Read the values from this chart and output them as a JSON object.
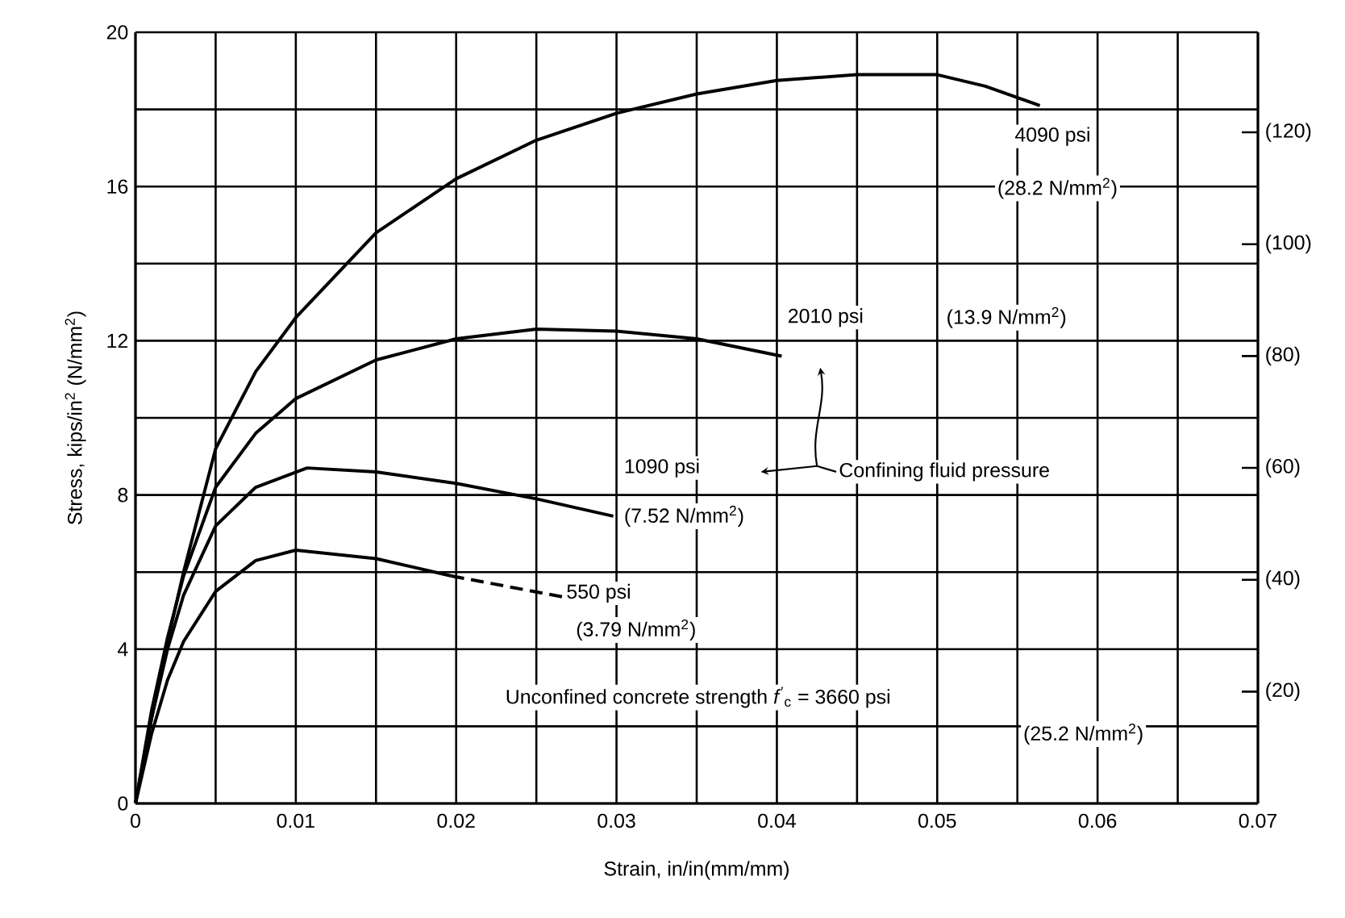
{
  "chart_data": {
    "type": "line",
    "xlabel": "Strain, in/in(mm/mm)",
    "ylabel": "Stress, kips/in$^{2}$ (N/mm$^{2}$)",
    "xlim": [
      0,
      0.07
    ],
    "xticks": [
      0,
      {
        "value": 0.005,
        "label": null
      },
      0.01,
      {
        "value": 0.015,
        "label": null
      },
      0.02,
      {
        "value": 0.025,
        "label": null
      },
      0.03,
      {
        "value": 0.035,
        "label": null
      },
      0.04,
      {
        "value": 0.045,
        "label": null
      },
      0.05,
      {
        "value": 0.055,
        "label": null
      },
      0.06,
      {
        "value": 0.065,
        "label": null
      },
      0.07
    ],
    "ylim": [
      0,
      20
    ],
    "yticks": [
      0,
      {
        "value": 2,
        "label": null
      },
      4,
      {
        "value": 6,
        "label": null
      },
      8,
      {
        "value": 10,
        "label": null
      },
      12,
      {
        "value": 14,
        "label": null
      },
      16,
      {
        "value": 18,
        "label": null
      },
      20
    ],
    "y2lim": [
      0,
      137.9
    ],
    "y2ticks": [
      {
        "value": 20,
        "label": "(20)"
      },
      {
        "value": 40,
        "label": "(40)"
      },
      {
        "value": 60,
        "label": "(60)"
      },
      {
        "value": 80,
        "label": "(80)"
      },
      {
        "value": 100,
        "label": "(100)"
      },
      {
        "value": 120,
        "label": "(120)"
      }
    ],
    "grid": true,
    "series": [
      {
        "name": "4090 psi",
        "color": "#000000",
        "line_style": "solid",
        "x": [
          0,
          0.001,
          0.002,
          0.003,
          0.005,
          0.0075,
          0.01,
          0.015,
          0.02,
          0.025,
          0.03,
          0.035,
          0.04,
          0.045,
          0.05,
          0.053,
          0.0564
        ],
        "values": [
          0,
          2.2,
          4.2,
          6,
          9.2,
          11.2,
          12.6,
          14.8,
          16.2,
          17.2,
          17.9,
          18.4,
          18.75,
          18.9,
          18.9,
          18.6,
          18.1
        ]
      },
      {
        "name": "2010 psi",
        "color": "#000000",
        "line_style": "solid",
        "x": [
          0,
          0.001,
          0.002,
          0.003,
          0.005,
          0.0075,
          0.01,
          0.015,
          0.02,
          0.025,
          0.03,
          0.035,
          0.0403
        ],
        "values": [
          0,
          2.4,
          4.3,
          5.9,
          8.2,
          9.6,
          10.5,
          11.5,
          12.05,
          12.3,
          12.25,
          12.05,
          11.6
        ]
      },
      {
        "name": "1090 psi",
        "color": "#000000",
        "line_style": "solid",
        "x": [
          0,
          0.001,
          0.002,
          0.003,
          0.005,
          0.0075,
          0.0107,
          0.015,
          0.02,
          0.025,
          0.0298
        ],
        "values": [
          0,
          2.2,
          4.0,
          5.4,
          7.2,
          8.2,
          8.7,
          8.6,
          8.3,
          7.9,
          7.45
        ]
      },
      {
        "color": "#000000",
        "line_style": "solid",
        "x": [
          0,
          0.001,
          0.002,
          0.003,
          0.005,
          0.0075,
          0.01,
          0.015,
          0.0197
        ],
        "values": [
          0,
          1.8,
          3.2,
          4.2,
          5.5,
          6.3,
          6.57,
          6.35,
          5.9
        ]
      },
      {
        "name": "550 psi",
        "color": "#000000",
        "line_style": "dashed",
        "x": [
          0.0197,
          0.0266
        ],
        "values": [
          5.9,
          5.36
        ]
      }
    ],
    "annotations": [
      "(28.2 N/mm$^{2}$)",
      "(13.9 N/mm$^{2}$)",
      "(7.52 N/mm$^{2}$)",
      "(3.79 N/mm$^{2}$)",
      "Confining fluid pressure",
      "Unconfined concrete strength *f*$^{′}$$_{c}$ = 3660 psi",
      "(25.2 N/mm$^{2}$)"
    ]
  }
}
